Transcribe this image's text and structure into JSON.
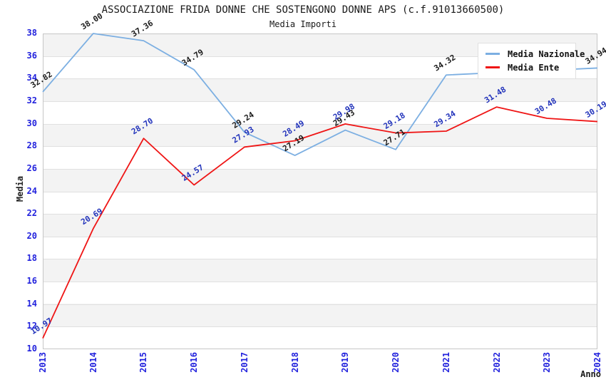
{
  "title": "ASSOCIAZIONE FRIDA DONNE CHE SOSTENGONO DONNE APS (c.f.91013660500)",
  "subtitle": "Media Importi",
  "axes": {
    "y_label": "Media",
    "x_label": "Anno",
    "y_ticks": [
      38,
      36,
      34,
      32,
      30,
      28,
      26,
      24,
      22,
      20,
      18,
      16,
      14,
      12,
      10
    ],
    "tick_color": "#2222dd"
  },
  "legend": {
    "items": [
      {
        "label": "Media Nazionale",
        "color": "#7cafe2"
      },
      {
        "label": "Media Ente",
        "color": "#ef1515"
      }
    ]
  },
  "chart_data": {
    "type": "line",
    "x": [
      "2013",
      "2014",
      "2015",
      "2016",
      "2017",
      "2018",
      "2019",
      "2020",
      "2021",
      "2022",
      "2023",
      "2024"
    ],
    "ylim": [
      10,
      38
    ],
    "grid": "horizontal-bands",
    "legend_position": "top-right-inside",
    "series": [
      {
        "name": "Media Nazionale",
        "color": "#7cafe2",
        "label_color": "#1a1a1a",
        "values": [
          32.82,
          38.0,
          37.36,
          34.79,
          29.24,
          27.19,
          29.43,
          27.71,
          34.32,
          34.53,
          34.73,
          34.94
        ],
        "point_labels": [
          "32.82",
          "38.00",
          "37.36",
          "34.79",
          "29.24",
          "27.19",
          "29.43",
          "27.71",
          "34.32",
          "",
          "",
          "34.94"
        ]
      },
      {
        "name": "Media Ente",
        "color": "#ef1515",
        "label_color": "#2233bb",
        "values": [
          10.97,
          20.69,
          28.7,
          24.57,
          27.93,
          28.49,
          29.98,
          29.18,
          29.34,
          31.48,
          30.48,
          30.19
        ],
        "point_labels": [
          "10.97",
          "20.69",
          "28.70",
          "24.57",
          "27.93",
          "28.49",
          "29.98",
          "29.18",
          "29.34",
          "31.48",
          "30.48",
          "30.19"
        ]
      }
    ]
  }
}
